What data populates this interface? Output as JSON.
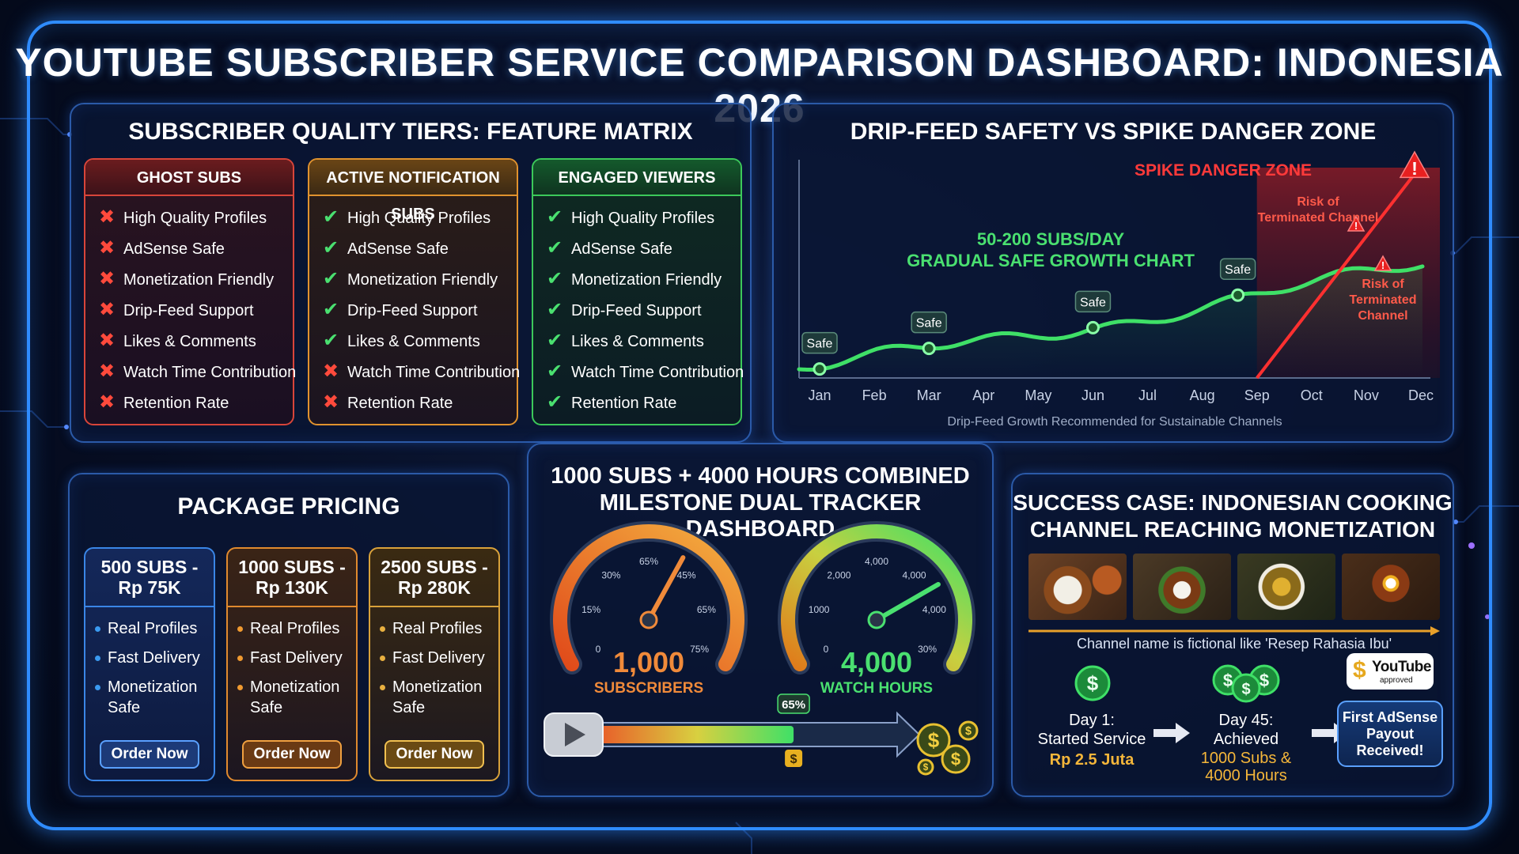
{
  "title": "YOUTUBE SUBSCRIBER SERVICE COMPARISON DASHBOARD: INDONESIA 2026",
  "feature_matrix": {
    "title": "SUBSCRIBER QUALITY TIERS: FEATURE MATRIX",
    "features": [
      "High Quality Profiles",
      "AdSense Safe",
      "Monetization Friendly",
      "Drip-Feed Support",
      "Likes & Comments",
      "Watch Time Contribution",
      "Retention Rate"
    ],
    "tiers": [
      {
        "name": "GHOST SUBS",
        "color": "#d8453a",
        "checks": [
          false,
          false,
          false,
          false,
          false,
          false,
          false
        ]
      },
      {
        "name": "ACTIVE NOTIFICATION SUBS",
        "color": "#e0922e",
        "checks": [
          true,
          true,
          true,
          true,
          true,
          false,
          false
        ]
      },
      {
        "name": "ENGAGED VIEWERS",
        "color": "#3cc85a",
        "checks": [
          true,
          true,
          true,
          true,
          true,
          true,
          true
        ]
      }
    ]
  },
  "growth_chart": {
    "title": "DRIP-FEED SAFETY VS SPIKE DANGER ZONE",
    "chart_data": {
      "type": "line",
      "categories": [
        "Jan",
        "Feb",
        "Mar",
        "Apr",
        "May",
        "Jun",
        "Jul",
        "Aug",
        "Sep",
        "Oct",
        "Nov",
        "Dec"
      ],
      "caption": "Drip-Feed Growth Recommended for Sustainable Channels",
      "safe_label_line1": "50-200 SUBS/DAY",
      "safe_label_line2": "GRADUAL SAFE GROWTH CHART",
      "safe_marker_label": "Safe",
      "safe_marker_months": [
        "Jan",
        "Mar",
        "Jun",
        "Aug"
      ],
      "danger_zone_label": "SPIKE DANGER ZONE",
      "danger_zone_start": "Sep",
      "risk_label": "Risk of Terminated Channel",
      "safe_color": "#3fe067",
      "danger_color": "#ff3030"
    }
  },
  "pricing": {
    "title": "PACKAGE PRICING",
    "packages": [
      {
        "name_line1": "500 SUBS -",
        "name_line2": "Rp 75K",
        "features": [
          "Real Profiles",
          "Fast Delivery",
          "Monetization Safe"
        ],
        "button": "Order Now",
        "color": "#3a86e6"
      },
      {
        "name_line1": "1000 SUBS -",
        "name_line2": "Rp 130K",
        "features": [
          "Real Profiles",
          "Fast Delivery",
          "Monetization Safe"
        ],
        "button": "Order Now",
        "color": "#e08a2e"
      },
      {
        "name_line1": "2500 SUBS -",
        "name_line2": "Rp 280K",
        "features": [
          "Real Profiles",
          "Fast Delivery",
          "Monetization Safe"
        ],
        "button": "Order Now",
        "color": "#d9a23a"
      }
    ]
  },
  "tracker": {
    "title_line1": "1000 SUBS + 4000 HOURS COMBINED",
    "title_line2": "MILESTONE DUAL TRACKER DASHBOARD",
    "subs_gauge": {
      "value": "1,000",
      "label": "SUBSCRIBERS",
      "ticks": [
        "0",
        "15%",
        "30%",
        "65%",
        "45%",
        "65%",
        "75%"
      ],
      "needle_fraction": 0.62
    },
    "hours_gauge": {
      "value": "4,000",
      "label": "WATCH HOURS",
      "ticks": [
        "0",
        "1000",
        "2,000",
        "4,000",
        "4,000",
        "4,000",
        "30%"
      ],
      "needle_fraction": 0.75
    },
    "progress": {
      "percent": 65,
      "label": "65%"
    },
    "icons": [
      "play-button-icon",
      "dollar-coin-icon"
    ]
  },
  "success_case": {
    "title_line1": "SUCCESS CASE: INDONESIAN COOKING",
    "title_line2": "CHANNEL REACHING MONETIZATION",
    "note": "Channel name is fictional like 'Resep Rahasia Ibu'",
    "steps": [
      {
        "line1": "Day 1:",
        "line2": "Started Service",
        "line3": "Rp 2.5 Juta"
      },
      {
        "line1": "Day 45:",
        "line2": "Achieved",
        "line3": "1000 Subs &",
        "line4": "4000 Hours"
      }
    ],
    "badge_brand": "YouTube",
    "badge_sub": "approved",
    "final_line1": "First AdSense",
    "final_line2": "Payout",
    "final_line3": "Received!"
  }
}
